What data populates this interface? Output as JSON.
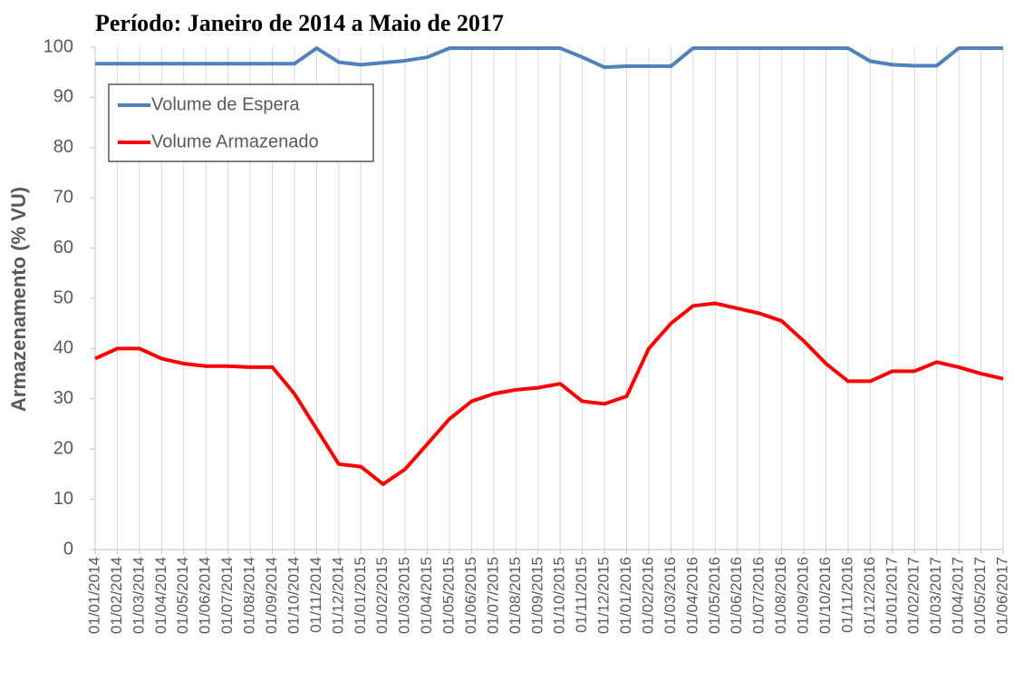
{
  "chart_data": {
    "type": "line",
    "title": "Período: Janeiro de 2014 a Maio de 2017",
    "y_label": "Armazenamento (% VU)",
    "categories": [
      "01/01/2014",
      "01/02/2014",
      "01/03/2014",
      "01/04/2014",
      "01/05/2014",
      "01/06/2014",
      "01/07/2014",
      "01/08/2014",
      "01/09/2014",
      "01/10/2014",
      "01/11/2014",
      "01/12/2014",
      "01/01/2015",
      "01/02/2015",
      "01/03/2015",
      "01/04/2015",
      "01/05/2015",
      "01/06/2015",
      "01/07/2015",
      "01/08/2015",
      "01/09/2015",
      "01/10/2015",
      "01/11/2015",
      "01/12/2015",
      "01/01/2016",
      "01/02/2016",
      "01/03/2016",
      "01/04/2016",
      "01/05/2016",
      "01/06/2016",
      "01/07/2016",
      "01/08/2016",
      "01/09/2016",
      "01/10/2016",
      "01/11/2016",
      "01/12/2016",
      "01/01/2017",
      "01/02/2017",
      "01/03/2017",
      "01/04/2017",
      "01/05/2017",
      "01/06/2017"
    ],
    "series": [
      {
        "name": "Volume de Espera",
        "color": "#4f81bd",
        "values": [
          96.7,
          96.7,
          96.7,
          96.7,
          96.7,
          96.7,
          96.7,
          96.7,
          96.7,
          96.7,
          99.8,
          97,
          96.5,
          96.9,
          97.3,
          98,
          99.8,
          99.8,
          99.8,
          99.8,
          99.8,
          99.8,
          98,
          96,
          96.2,
          96.2,
          96.2,
          99.8,
          99.8,
          99.8,
          99.8,
          99.8,
          99.8,
          99.8,
          99.8,
          97.2,
          96.5,
          96.3,
          96.3,
          99.8,
          99.8,
          99.8
        ]
      },
      {
        "name": "Volume Armazenado",
        "color": "#ff0000",
        "values": [
          38,
          40,
          40,
          38,
          37,
          36.5,
          36.5,
          36.3,
          36.3,
          31,
          24,
          17,
          16.5,
          13,
          16,
          21,
          26,
          29.5,
          31,
          31.8,
          32.2,
          33,
          29.5,
          29,
          30.5,
          40,
          45,
          48.5,
          49,
          48,
          47,
          45.5,
          41.5,
          37,
          33.5,
          33.5,
          35.5,
          35.5,
          37.3,
          36.3,
          35,
          34
        ]
      }
    ],
    "ylim": [
      0,
      100
    ],
    "yticks": [
      0,
      10,
      20,
      30,
      40,
      50,
      60,
      70,
      80,
      90,
      100
    ],
    "grid": "x",
    "legend": "top-left"
  }
}
